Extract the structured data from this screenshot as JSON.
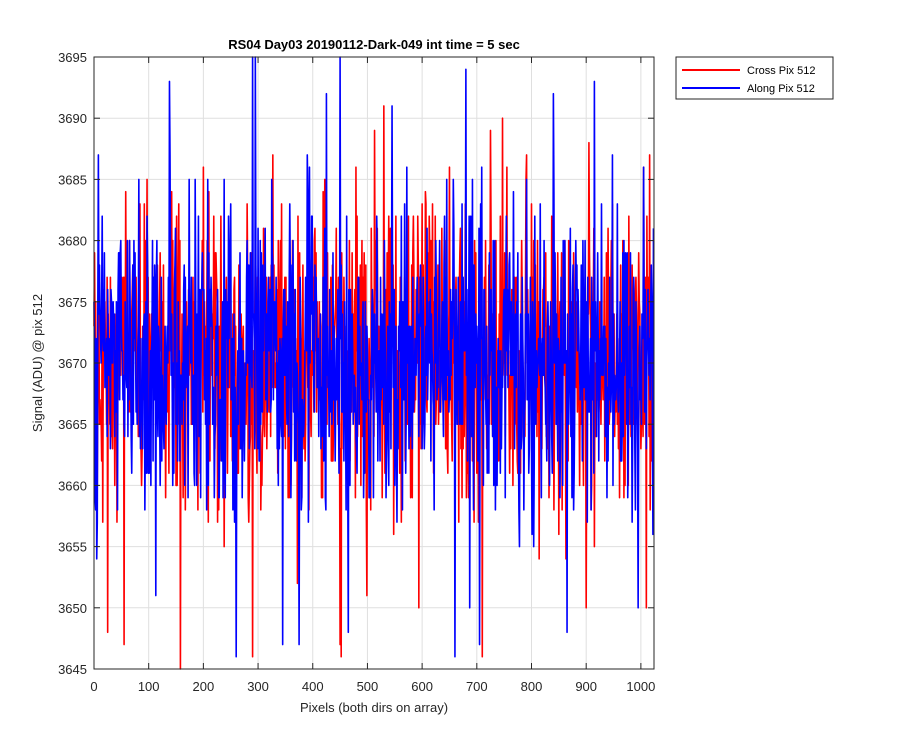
{
  "chart_data": {
    "type": "line",
    "title": "RS04 Day03 20190112-Dark-049 int time = 5 sec",
    "xlabel": "Pixels (both dirs on array)",
    "ylabel": "Signal (ADU) @ pix 512",
    "xlim": [
      0,
      1024
    ],
    "ylim": [
      3645,
      3695
    ],
    "xticks": [
      0,
      100,
      200,
      300,
      400,
      500,
      600,
      700,
      800,
      900,
      1000
    ],
    "yticks": [
      3645,
      3650,
      3655,
      3660,
      3665,
      3670,
      3675,
      3680,
      3685,
      3690,
      3695
    ],
    "grid": true,
    "legend_position": "outside-top-right",
    "series_summary": {
      "sample_count": 1024,
      "x_step": 1,
      "typical_center": 3670,
      "typical_range": [
        3660,
        3682
      ]
    },
    "series": [
      {
        "name": "Cross Pix 512",
        "color": "#ff0000",
        "notable_peaks": [
          [
            58,
            3684
          ],
          [
            155,
            3683
          ],
          [
            232,
            3682
          ],
          [
            290,
            3684
          ],
          [
            422,
            3685
          ],
          [
            530,
            3691
          ],
          [
            650,
            3686
          ],
          [
            725,
            3689
          ],
          [
            755,
            3686
          ],
          [
            905,
            3688
          ],
          [
            1005,
            3686
          ]
        ],
        "notable_dips": [
          [
            25,
            3648
          ],
          [
            55,
            3647
          ],
          [
            158,
            3645
          ],
          [
            290,
            3646
          ],
          [
            450,
            3647
          ],
          [
            710,
            3646
          ],
          [
            900,
            3650
          ],
          [
            1010,
            3650
          ]
        ]
      },
      {
        "name": "Along Pix 512",
        "color": "#0000ff",
        "notable_peaks": [
          [
            8,
            3687
          ],
          [
            138,
            3693
          ],
          [
            208,
            3685
          ],
          [
            290,
            3695
          ],
          [
            295,
            3695
          ],
          [
            425,
            3692
          ],
          [
            450,
            3695
          ],
          [
            545,
            3691
          ],
          [
            680,
            3694
          ],
          [
            840,
            3692
          ],
          [
            915,
            3693
          ],
          [
            1005,
            3686
          ]
        ],
        "notable_dips": [
          [
            5,
            3654
          ],
          [
            260,
            3646
          ],
          [
            345,
            3647
          ],
          [
            375,
            3647
          ],
          [
            465,
            3648
          ],
          [
            660,
            3646
          ],
          [
            705,
            3647
          ],
          [
            865,
            3648
          ]
        ]
      }
    ]
  }
}
